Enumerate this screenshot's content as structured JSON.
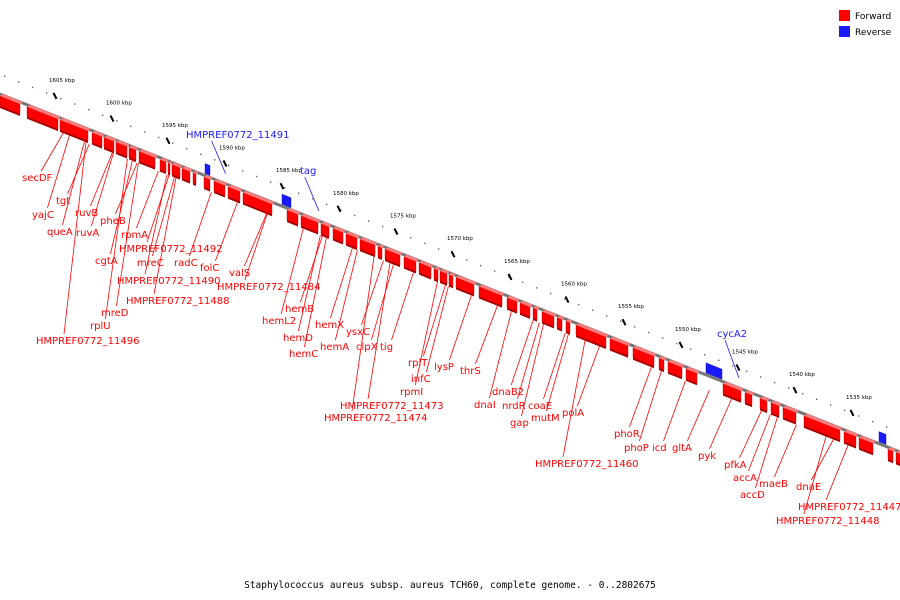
{
  "legend": {
    "forward_label": "Forward",
    "reverse_label": "Reverse",
    "forward_color": "#ff0000",
    "reverse_color": "#1a1aff"
  },
  "caption": "Staphylococcus aureus subsp. aureus TCH60, complete genome. - 0..2802675",
  "ticks": [
    {
      "label": "1605 kbp",
      "kbp": 1605
    },
    {
      "label": "1600 kbp",
      "kbp": 1600
    },
    {
      "label": "1595 kbp",
      "kbp": 1595
    },
    {
      "label": "1590 kbp",
      "kbp": 1590
    },
    {
      "label": "1585 kbp",
      "kbp": 1585
    },
    {
      "label": "1580 kbp",
      "kbp": 1580
    },
    {
      "label": "1575 kbp",
      "kbp": 1575
    },
    {
      "label": "1570 kbp",
      "kbp": 1570
    },
    {
      "label": "1565 kbp",
      "kbp": 1565
    },
    {
      "label": "1560 kbp",
      "kbp": 1560
    },
    {
      "label": "1555 kbp",
      "kbp": 1555
    },
    {
      "label": "1550 kbp",
      "kbp": 1550
    },
    {
      "label": "1545 kbp",
      "kbp": 1545
    },
    {
      "label": "1540 kbp",
      "kbp": 1540
    },
    {
      "label": "1535 kbp",
      "kbp": 1535
    }
  ],
  "reverse_genes": [
    {
      "name": "HMPREF0772_11491"
    },
    {
      "name": "tag"
    },
    {
      "name": "cycA2"
    }
  ],
  "forward_genes": [
    {
      "name": "secDF"
    },
    {
      "name": "tgt"
    },
    {
      "name": "yajC"
    },
    {
      "name": "ruvB"
    },
    {
      "name": "queA"
    },
    {
      "name": "ruvA"
    },
    {
      "name": "pheB"
    },
    {
      "name": "rpmA"
    },
    {
      "name": "cgtA"
    },
    {
      "name": "HMPREF0772_11492"
    },
    {
      "name": "mreC"
    },
    {
      "name": "radC"
    },
    {
      "name": "folC"
    },
    {
      "name": "valS"
    },
    {
      "name": "HMPREF0772_11490"
    },
    {
      "name": "HMPREF0772_11484"
    },
    {
      "name": "HMPREF0772_11488"
    },
    {
      "name": "mreD"
    },
    {
      "name": "rplU"
    },
    {
      "name": "HMPREF0772_11496"
    },
    {
      "name": "hemB"
    },
    {
      "name": "hemL2"
    },
    {
      "name": "hemD"
    },
    {
      "name": "hemC"
    },
    {
      "name": "hemX"
    },
    {
      "name": "hemA"
    },
    {
      "name": "ysxC"
    },
    {
      "name": "clpX"
    },
    {
      "name": "tig"
    },
    {
      "name": "rplT"
    },
    {
      "name": "infC"
    },
    {
      "name": "rpmI"
    },
    {
      "name": "lysP"
    },
    {
      "name": "thrS"
    },
    {
      "name": "HMPREF0772_11473"
    },
    {
      "name": "HMPREF0772_11474"
    },
    {
      "name": "dnaB2"
    },
    {
      "name": "dnaI"
    },
    {
      "name": "nrdR"
    },
    {
      "name": "coaE"
    },
    {
      "name": "gap"
    },
    {
      "name": "mutM"
    },
    {
      "name": "polA"
    },
    {
      "name": "HMPREF0772_11460"
    },
    {
      "name": "phoR"
    },
    {
      "name": "phoP"
    },
    {
      "name": "icd"
    },
    {
      "name": "gltA"
    },
    {
      "name": "pyk"
    },
    {
      "name": "pfkA"
    },
    {
      "name": "accA"
    },
    {
      "name": "maeB"
    },
    {
      "name": "accD"
    },
    {
      "name": "dnaE"
    },
    {
      "name": "HMPREF0772_11447"
    },
    {
      "name": "HMPREF0772_11448"
    }
  ]
}
